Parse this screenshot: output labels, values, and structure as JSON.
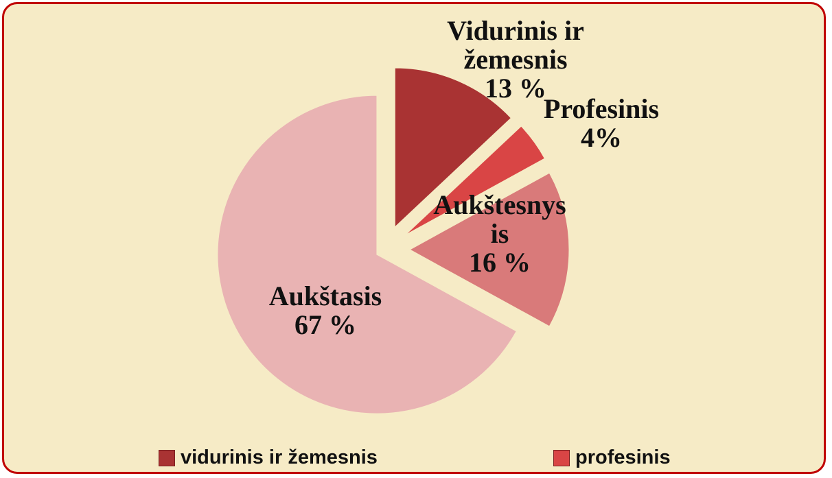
{
  "chart_data": {
    "type": "pie",
    "categories": [
      "Vidurinis ir žemesnis",
      "Profesinis",
      "Aukštesnysis",
      "Aukštasis"
    ],
    "values": [
      13,
      4,
      16,
      67
    ],
    "value_labels": [
      "13 %",
      "4%",
      "16 %",
      "67 %"
    ],
    "colors": [
      "#a93333",
      "#d94545",
      "#d97a7a",
      "#e9b3b3"
    ],
    "legend_labels": [
      "vidurinis ir žemesnis",
      "profesinis"
    ]
  }
}
